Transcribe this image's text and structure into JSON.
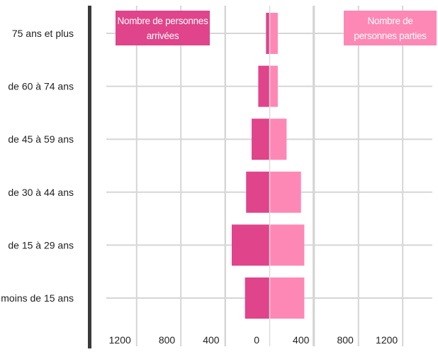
{
  "chart_data": {
    "type": "bar",
    "orientation": "horizontal",
    "layout": "butterfly",
    "categories": [
      "75 ans et plus",
      "de 60 à 74 ans",
      "de 45 à 59 ans",
      "de 30 à 44 ans",
      "de 15 à 29 ans",
      "moins de 15 ans"
    ],
    "series": [
      {
        "name": "Nombre de personnes arrivées",
        "side": "left",
        "color": "#e0448a",
        "values": [
          30,
          100,
          160,
          210,
          340,
          220
        ]
      },
      {
        "name": "Nombre de personnes parties",
        "side": "right",
        "color": "#fe88b5",
        "values": [
          70,
          70,
          150,
          280,
          310,
          310
        ]
      }
    ],
    "x_ticks_left": [
      "1200",
      "800",
      "400",
      "0"
    ],
    "x_ticks_right": [
      "400",
      "800",
      "1200"
    ],
    "xlim_left": [
      0,
      1400
    ],
    "xlim_right": [
      0,
      1400
    ],
    "grid": true,
    "legend": {
      "placement": "top",
      "arrived_label": "Nombre de personnes arrivées",
      "departed_label": "Nombre de personnes parties"
    }
  }
}
